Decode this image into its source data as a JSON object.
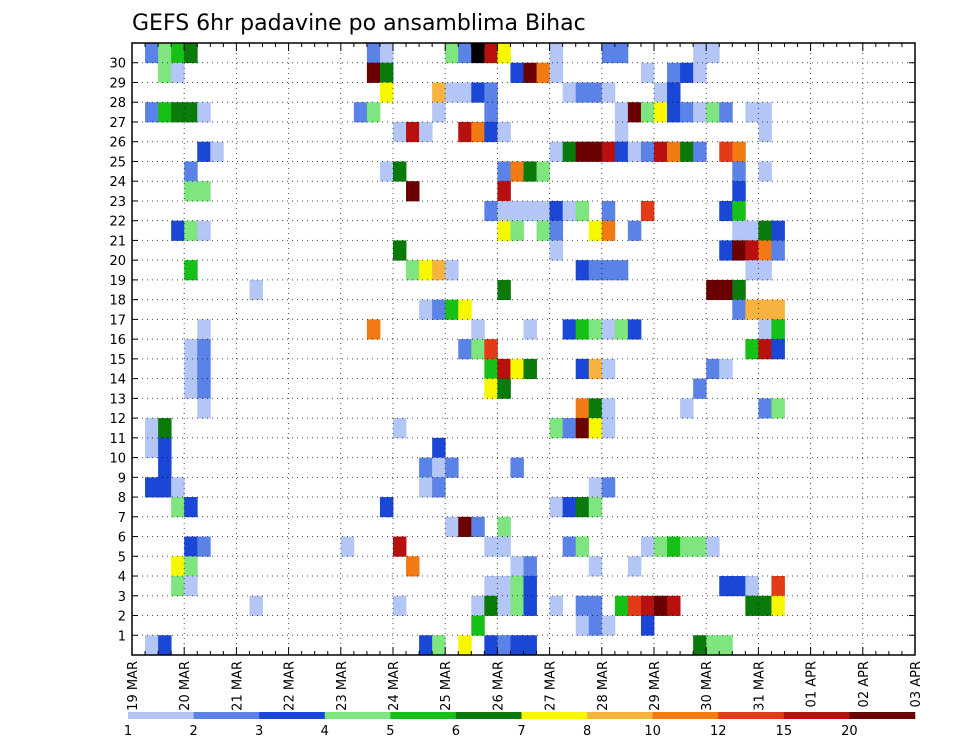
{
  "chart_data": {
    "type": "heatmap",
    "title": "GEFS 6hr padavine po ansamblima Bihac",
    "xlabel": "",
    "ylabel": "",
    "x_tick_labels": [
      "19 MAR",
      "20 MAR",
      "21 MAR",
      "22 MAR",
      "23 MAR",
      "24 MAR",
      "25 MAR",
      "26 MAR",
      "27 MAR",
      "28 MAR",
      "29 MAR",
      "30 MAR",
      "31 MAR",
      "01 APR",
      "02 APR",
      "03 APR"
    ],
    "y_tick_labels": [
      "1",
      "2",
      "3",
      "4",
      "5",
      "6",
      "7",
      "8",
      "9",
      "10",
      "11",
      "12",
      "13",
      "14",
      "15",
      "16",
      "17",
      "18",
      "19",
      "20",
      "21",
      "22",
      "23",
      "24",
      "25",
      "26",
      "27",
      "28",
      "29",
      "30"
    ],
    "time_steps_per_day": 4,
    "grid": true,
    "legend": {
      "position": "bottom",
      "labels": [
        "1",
        "2",
        "3",
        "4",
        "5",
        "6",
        "7",
        "8",
        "10",
        "12",
        "15",
        "20"
      ],
      "colors": [
        "#b3c6f5",
        "#5b82e6",
        "#1a47d6",
        "#7fe57f",
        "#17c017",
        "#0a7a0a",
        "#f7f700",
        "#f7b340",
        "#f27a13",
        "#e33a17",
        "#b80f0f",
        "#6b0000"
      ]
    },
    "cells": [
      [
        30,
        1,
        2
      ],
      [
        30,
        2,
        4
      ],
      [
        30,
        3,
        5
      ],
      [
        30,
        4,
        6
      ],
      [
        30,
        18,
        2
      ],
      [
        30,
        19,
        1
      ],
      [
        30,
        24,
        4
      ],
      [
        30,
        25,
        2
      ],
      [
        30,
        26,
        13
      ],
      [
        30,
        27,
        11
      ],
      [
        30,
        28,
        7
      ],
      [
        30,
        32,
        1
      ],
      [
        30,
        36,
        2
      ],
      [
        30,
        37,
        2
      ],
      [
        30,
        43,
        1
      ],
      [
        30,
        44,
        1
      ],
      [
        29,
        2,
        4
      ],
      [
        29,
        3,
        1
      ],
      [
        29,
        18,
        12
      ],
      [
        29,
        19,
        6
      ],
      [
        29,
        29,
        3
      ],
      [
        29,
        30,
        12
      ],
      [
        29,
        31,
        9
      ],
      [
        29,
        32,
        1
      ],
      [
        29,
        39,
        1
      ],
      [
        29,
        41,
        2
      ],
      [
        29,
        42,
        3
      ],
      [
        29,
        43,
        1
      ],
      [
        28,
        19,
        7
      ],
      [
        28,
        23,
        8
      ],
      [
        28,
        24,
        1
      ],
      [
        28,
        25,
        1
      ],
      [
        28,
        26,
        3
      ],
      [
        28,
        27,
        2
      ],
      [
        28,
        33,
        1
      ],
      [
        28,
        34,
        2
      ],
      [
        28,
        35,
        2
      ],
      [
        28,
        36,
        1
      ],
      [
        28,
        40,
        1
      ],
      [
        28,
        41,
        3
      ],
      [
        27,
        1,
        2
      ],
      [
        27,
        2,
        5
      ],
      [
        27,
        3,
        6
      ],
      [
        27,
        4,
        6
      ],
      [
        27,
        5,
        1
      ],
      [
        27,
        17,
        2
      ],
      [
        27,
        18,
        4
      ],
      [
        27,
        23,
        1
      ],
      [
        27,
        27,
        2
      ],
      [
        27,
        37,
        1
      ],
      [
        27,
        38,
        12
      ],
      [
        27,
        39,
        4
      ],
      [
        27,
        40,
        7
      ],
      [
        27,
        41,
        3
      ],
      [
        27,
        42,
        2
      ],
      [
        27,
        43,
        1
      ],
      [
        27,
        44,
        4
      ],
      [
        27,
        45,
        2
      ],
      [
        27,
        47,
        1
      ],
      [
        27,
        48,
        1
      ],
      [
        26,
        20,
        1
      ],
      [
        26,
        21,
        11
      ],
      [
        26,
        22,
        1
      ],
      [
        26,
        25,
        11
      ],
      [
        26,
        26,
        9
      ],
      [
        26,
        27,
        3
      ],
      [
        26,
        28,
        1
      ],
      [
        26,
        37,
        1
      ],
      [
        26,
        48,
        1
      ],
      [
        25,
        5,
        3
      ],
      [
        25,
        6,
        1
      ],
      [
        25,
        32,
        1
      ],
      [
        25,
        33,
        6
      ],
      [
        25,
        34,
        12
      ],
      [
        25,
        35,
        12
      ],
      [
        25,
        36,
        11
      ],
      [
        25,
        37,
        3
      ],
      [
        25,
        38,
        1
      ],
      [
        25,
        39,
        2
      ],
      [
        25,
        40,
        11
      ],
      [
        25,
        41,
        9
      ],
      [
        25,
        42,
        6
      ],
      [
        25,
        43,
        2
      ],
      [
        25,
        45,
        10
      ],
      [
        25,
        46,
        9
      ],
      [
        24,
        4,
        2
      ],
      [
        24,
        19,
        1
      ],
      [
        24,
        20,
        6
      ],
      [
        24,
        28,
        2
      ],
      [
        24,
        29,
        9
      ],
      [
        24,
        30,
        6
      ],
      [
        24,
        31,
        4
      ],
      [
        24,
        46,
        2
      ],
      [
        24,
        48,
        1
      ],
      [
        23,
        4,
        4
      ],
      [
        23,
        5,
        4
      ],
      [
        23,
        21,
        12
      ],
      [
        23,
        28,
        11
      ],
      [
        23,
        46,
        3
      ],
      [
        22,
        27,
        2
      ],
      [
        22,
        28,
        1
      ],
      [
        22,
        29,
        1
      ],
      [
        22,
        30,
        1
      ],
      [
        22,
        31,
        1
      ],
      [
        22,
        32,
        3
      ],
      [
        22,
        33,
        1
      ],
      [
        22,
        34,
        4
      ],
      [
        22,
        36,
        2
      ],
      [
        22,
        39,
        10
      ],
      [
        22,
        45,
        3
      ],
      [
        22,
        46,
        5
      ],
      [
        21,
        3,
        3
      ],
      [
        21,
        4,
        4
      ],
      [
        21,
        5,
        1
      ],
      [
        21,
        28,
        7
      ],
      [
        21,
        29,
        4
      ],
      [
        21,
        31,
        4
      ],
      [
        21,
        32,
        2
      ],
      [
        21,
        35,
        7
      ],
      [
        21,
        36,
        9
      ],
      [
        21,
        38,
        2
      ],
      [
        21,
        46,
        1
      ],
      [
        21,
        47,
        1
      ],
      [
        21,
        48,
        6
      ],
      [
        21,
        49,
        3
      ],
      [
        20,
        20,
        6
      ],
      [
        20,
        32,
        1
      ],
      [
        20,
        45,
        3
      ],
      [
        20,
        46,
        12
      ],
      [
        20,
        47,
        11
      ],
      [
        20,
        48,
        9
      ],
      [
        20,
        49,
        2
      ],
      [
        19,
        4,
        5
      ],
      [
        19,
        21,
        4
      ],
      [
        19,
        22,
        7
      ],
      [
        19,
        23,
        8
      ],
      [
        19,
        24,
        1
      ],
      [
        19,
        34,
        3
      ],
      [
        19,
        35,
        2
      ],
      [
        19,
        36,
        2
      ],
      [
        19,
        37,
        2
      ],
      [
        19,
        47,
        1
      ],
      [
        19,
        48,
        1
      ],
      [
        18,
        9,
        1
      ],
      [
        18,
        28,
        6
      ],
      [
        18,
        44,
        12
      ],
      [
        18,
        45,
        12
      ],
      [
        18,
        46,
        6
      ],
      [
        17,
        22,
        1
      ],
      [
        17,
        23,
        2
      ],
      [
        17,
        24,
        5
      ],
      [
        17,
        25,
        7
      ],
      [
        17,
        46,
        2
      ],
      [
        17,
        47,
        8
      ],
      [
        17,
        48,
        8
      ],
      [
        17,
        49,
        8
      ],
      [
        16,
        5,
        1
      ],
      [
        16,
        18,
        9
      ],
      [
        16,
        26,
        1
      ],
      [
        16,
        30,
        1
      ],
      [
        16,
        33,
        3
      ],
      [
        16,
        34,
        5
      ],
      [
        16,
        35,
        4
      ],
      [
        16,
        36,
        1
      ],
      [
        16,
        37,
        4
      ],
      [
        16,
        38,
        3
      ],
      [
        16,
        48,
        1
      ],
      [
        16,
        49,
        5
      ],
      [
        15,
        4,
        1
      ],
      [
        15,
        5,
        2
      ],
      [
        15,
        25,
        2
      ],
      [
        15,
        26,
        4
      ],
      [
        15,
        27,
        10
      ],
      [
        15,
        47,
        5
      ],
      [
        15,
        48,
        11
      ],
      [
        15,
        49,
        3
      ],
      [
        14,
        4,
        1
      ],
      [
        14,
        5,
        2
      ],
      [
        14,
        27,
        5
      ],
      [
        14,
        28,
        11
      ],
      [
        14,
        29,
        7
      ],
      [
        14,
        30,
        6
      ],
      [
        14,
        34,
        3
      ],
      [
        14,
        35,
        8
      ],
      [
        14,
        36,
        1
      ],
      [
        14,
        44,
        2
      ],
      [
        14,
        45,
        1
      ],
      [
        13,
        4,
        1
      ],
      [
        13,
        5,
        2
      ],
      [
        13,
        27,
        7
      ],
      [
        13,
        28,
        6
      ],
      [
        13,
        43,
        2
      ],
      [
        12,
        5,
        1
      ],
      [
        12,
        34,
        9
      ],
      [
        12,
        35,
        6
      ],
      [
        12,
        36,
        1
      ],
      [
        12,
        42,
        1
      ],
      [
        12,
        48,
        2
      ],
      [
        12,
        49,
        4
      ],
      [
        11,
        1,
        1
      ],
      [
        11,
        2,
        6
      ],
      [
        11,
        20,
        1
      ],
      [
        11,
        32,
        4
      ],
      [
        11,
        33,
        2
      ],
      [
        11,
        34,
        12
      ],
      [
        11,
        35,
        7
      ],
      [
        11,
        36,
        1
      ],
      [
        10,
        1,
        1
      ],
      [
        10,
        2,
        3
      ],
      [
        10,
        23,
        3
      ],
      [
        9,
        2,
        3
      ],
      [
        9,
        22,
        2
      ],
      [
        9,
        23,
        1
      ],
      [
        9,
        24,
        2
      ],
      [
        9,
        29,
        2
      ],
      [
        8,
        1,
        3
      ],
      [
        8,
        2,
        3
      ],
      [
        8,
        3,
        1
      ],
      [
        8,
        22,
        1
      ],
      [
        8,
        23,
        2
      ],
      [
        8,
        35,
        1
      ],
      [
        8,
        36,
        2
      ],
      [
        7,
        3,
        4
      ],
      [
        7,
        4,
        3
      ],
      [
        7,
        19,
        3
      ],
      [
        7,
        32,
        1
      ],
      [
        7,
        33,
        3
      ],
      [
        7,
        34,
        6
      ],
      [
        7,
        35,
        4
      ],
      [
        6,
        24,
        1
      ],
      [
        6,
        25,
        12
      ],
      [
        6,
        26,
        2
      ],
      [
        6,
        28,
        4
      ],
      [
        5,
        4,
        3
      ],
      [
        5,
        5,
        2
      ],
      [
        5,
        16,
        1
      ],
      [
        5,
        20,
        11
      ],
      [
        5,
        27,
        1
      ],
      [
        5,
        28,
        1
      ],
      [
        5,
        33,
        2
      ],
      [
        5,
        34,
        4
      ],
      [
        5,
        39,
        1
      ],
      [
        5,
        40,
        4
      ],
      [
        5,
        41,
        5
      ],
      [
        5,
        42,
        4
      ],
      [
        5,
        43,
        4
      ],
      [
        5,
        44,
        1
      ],
      [
        4,
        3,
        7
      ],
      [
        4,
        4,
        4
      ],
      [
        4,
        21,
        9
      ],
      [
        4,
        29,
        1
      ],
      [
        4,
        30,
        2
      ],
      [
        4,
        35,
        1
      ],
      [
        4,
        38,
        1
      ],
      [
        3,
        3,
        4
      ],
      [
        3,
        4,
        1
      ],
      [
        3,
        27,
        1
      ],
      [
        3,
        28,
        1
      ],
      [
        3,
        29,
        4
      ],
      [
        3,
        30,
        3
      ],
      [
        3,
        45,
        3
      ],
      [
        3,
        46,
        3
      ],
      [
        3,
        47,
        1
      ],
      [
        3,
        49,
        10
      ],
      [
        2,
        9,
        1
      ],
      [
        2,
        20,
        1
      ],
      [
        2,
        26,
        1
      ],
      [
        2,
        27,
        6
      ],
      [
        2,
        28,
        1
      ],
      [
        2,
        29,
        4
      ],
      [
        2,
        30,
        3
      ],
      [
        2,
        32,
        1
      ],
      [
        2,
        34,
        2
      ],
      [
        2,
        35,
        2
      ],
      [
        2,
        37,
        5
      ],
      [
        2,
        38,
        10
      ],
      [
        2,
        39,
        11
      ],
      [
        2,
        40,
        12
      ],
      [
        2,
        41,
        11
      ],
      [
        2,
        47,
        6
      ],
      [
        2,
        48,
        6
      ],
      [
        2,
        49,
        7
      ],
      [
        1,
        26,
        5
      ],
      [
        1,
        34,
        1
      ],
      [
        1,
        35,
        2
      ],
      [
        1,
        36,
        1
      ],
      [
        1,
        39,
        3
      ],
      [
        0,
        1,
        1
      ],
      [
        0,
        2,
        3
      ],
      [
        0,
        22,
        3
      ],
      [
        0,
        23,
        4
      ],
      [
        0,
        25,
        7
      ],
      [
        0,
        27,
        3
      ],
      [
        0,
        28,
        2
      ],
      [
        0,
        29,
        3
      ],
      [
        0,
        30,
        3
      ],
      [
        0,
        43,
        6
      ],
      [
        0,
        44,
        4
      ],
      [
        0,
        45,
        4
      ]
    ]
  }
}
